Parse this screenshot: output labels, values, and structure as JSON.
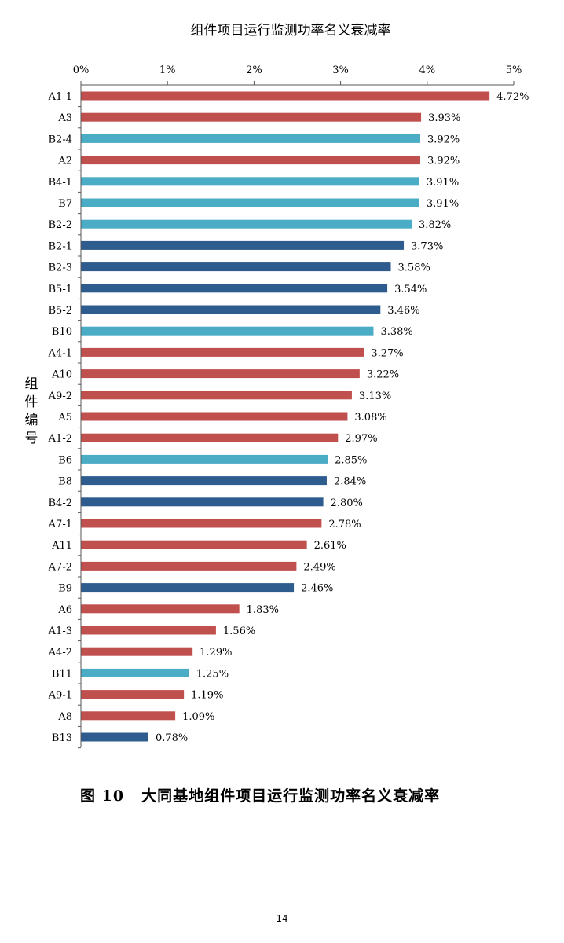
{
  "chart_data": {
    "type": "bar",
    "orientation": "horizontal",
    "title": "组件项目运行监测功率名义衰减率",
    "ylabel": "组件编号",
    "xlabel": "",
    "xlim": [
      0,
      5
    ],
    "xticks": [
      "0%",
      "1%",
      "2%",
      "3%",
      "4%",
      "5%"
    ],
    "categories": [
      "A1-1",
      "A3",
      "B2-4",
      "A2",
      "B4-1",
      "B7",
      "B2-2",
      "B2-1",
      "B2-3",
      "B5-1",
      "B5-2",
      "B10",
      "A4-1",
      "A10",
      "A9-2",
      "A5",
      "A1-2",
      "B6",
      "B8",
      "B4-2",
      "A7-1",
      "A11",
      "A7-2",
      "B9",
      "A6",
      "A1-3",
      "A4-2",
      "B11",
      "A9-1",
      "A8",
      "B13"
    ],
    "values": [
      4.72,
      3.93,
      3.92,
      3.92,
      3.91,
      3.91,
      3.82,
      3.73,
      3.58,
      3.54,
      3.46,
      3.38,
      3.27,
      3.22,
      3.13,
      3.08,
      2.97,
      2.85,
      2.84,
      2.8,
      2.78,
      2.61,
      2.49,
      2.46,
      1.83,
      1.56,
      1.29,
      1.25,
      1.19,
      1.09,
      0.78
    ],
    "value_labels": [
      "4.72%",
      "3.93%",
      "3.92%",
      "3.92%",
      "3.91%",
      "3.91%",
      "3.82%",
      "3.73%",
      "3.58%",
      "3.54%",
      "3.46%",
      "3.38%",
      "3.27%",
      "3.22%",
      "3.13%",
      "3.08%",
      "2.97%",
      "2.85%",
      "2.84%",
      "2.80%",
      "2.78%",
      "2.61%",
      "2.49%",
      "2.46%",
      "1.83%",
      "1.56%",
      "1.29%",
      "1.25%",
      "1.19%",
      "1.09%",
      "0.78%"
    ],
    "bar_color_keys": [
      "red",
      "red",
      "cyan",
      "red",
      "cyan",
      "cyan",
      "cyan",
      "blue",
      "blue",
      "blue",
      "blue",
      "cyan",
      "red",
      "red",
      "red",
      "red",
      "red",
      "cyan",
      "blue",
      "blue",
      "red",
      "red",
      "red",
      "blue",
      "red",
      "red",
      "red",
      "cyan",
      "red",
      "red",
      "blue"
    ],
    "colors": {
      "red": "#c0504d",
      "cyan": "#4bacc6",
      "blue": "#2e5c8f"
    },
    "grid": false,
    "legend": "none"
  },
  "caption": {
    "number": "图 10",
    "text": "大同基地组件项目运行监测功率名义衰减率"
  },
  "page_number": "14"
}
